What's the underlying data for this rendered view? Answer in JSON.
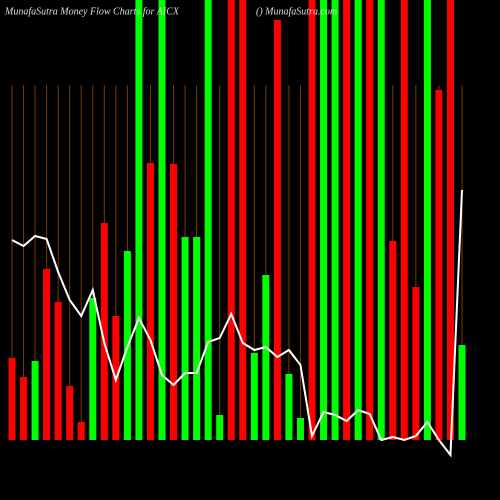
{
  "chart_data": {
    "type": "bar",
    "title": "MunafaSutra  Money Flow  Charts for AICX",
    "subtitle": "() MunafaSutra.com",
    "categories": [
      null,
      null,
      null,
      null,
      null,
      null,
      null,
      null,
      null,
      null,
      null,
      null,
      null,
      null,
      null,
      null,
      null,
      null,
      null,
      null,
      null,
      null,
      null,
      null,
      null,
      null,
      null,
      null,
      null,
      null,
      null,
      null,
      null,
      null,
      null,
      null,
      null,
      null,
      null,
      null
    ],
    "ylim": [
      -60,
      440
    ],
    "grid": true,
    "grid_color": "#7a3a00",
    "series": [
      {
        "type": "bar",
        "colors": [
          "#ff0000",
          "#ff0000",
          "#00ff00",
          "#ff0000",
          "#ff0000",
          "#ff0000",
          "#ff0000",
          "#00ff00",
          "#ff0000",
          "#ff0000",
          "#00ff00",
          "#00ff00",
          "#ff0000",
          "#00ff00",
          "#ff0000",
          "#00ff00",
          "#00ff00",
          "#00ff00",
          "#00ff00",
          "#ff0000",
          "#ff0000",
          "#00ff00",
          "#00ff00",
          "#ff0000",
          "#00ff00",
          "#00ff00",
          "#ff0000",
          "#00ff00",
          "#00ff00",
          "#ff0000",
          "#00ff00",
          "#ff0000",
          "#00ff00",
          "#ff0000",
          "#ff0000",
          "#ff0000",
          "#00ff00",
          "#ff0000",
          "#ff0000",
          "#00ff00"
        ],
        "values": [
          82,
          63,
          79,
          171,
          138,
          54,
          18,
          142,
          217,
          124,
          189,
          440,
          277,
          440,
          276,
          203,
          203,
          440,
          25,
          440,
          440,
          87,
          165,
          420,
          66,
          22,
          440,
          440,
          440,
          440,
          440,
          440,
          440,
          199,
          440,
          153,
          440,
          350,
          440,
          95
        ]
      },
      {
        "type": "line",
        "color": "#ffffff",
        "values": [
          200,
          194,
          204,
          201,
          168,
          140,
          124,
          150,
          97,
          60,
          93,
          122,
          100,
          65,
          55,
          67,
          67,
          98,
          102,
          126,
          97,
          90,
          93,
          83,
          90,
          75,
          4,
          28,
          25,
          19,
          30,
          26,
          0,
          3,
          0,
          4,
          18,
          0,
          -15,
          250
        ]
      }
    ]
  }
}
